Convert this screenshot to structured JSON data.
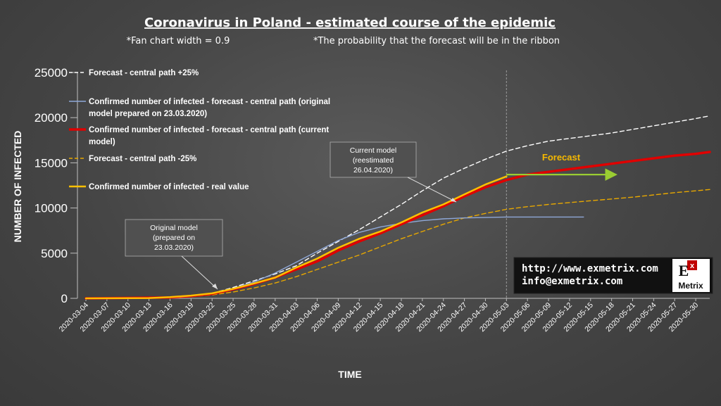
{
  "chart_data": {
    "type": "line",
    "title": "Coronavirus in Poland - estimated course of the epidemic",
    "subtitle_left": "*Fan chart width = 0.9",
    "subtitle_right": "*The probability that the forecast will be in the ribbon",
    "xlabel": "TIME",
    "ylabel": "NUMBER OF INFECTED",
    "x_start": "2020-03-04",
    "x_end": "2020-06-01",
    "ylim": [
      0,
      25000
    ],
    "yticks": [
      0,
      5000,
      10000,
      15000,
      20000,
      25000
    ],
    "xticks": [
      "2020-03-04",
      "2020-03-07",
      "2020-03-10",
      "2020-03-13",
      "2020-03-16",
      "2020-03-19",
      "2020-03-22",
      "2020-03-25",
      "2020-03-28",
      "2020-03-31",
      "2020-04-03",
      "2020-04-06",
      "2020-04-09",
      "2020-04-12",
      "2020-04-15",
      "2020-04-18",
      "2020-04-21",
      "2020-04-24",
      "2020-04-27",
      "2020-04-30",
      "2020-05-03",
      "2020-05-06",
      "2020-05-09",
      "2020-05-12",
      "2020-05-15",
      "2020-05-18",
      "2020-05-21",
      "2020-05-24",
      "2020-05-27",
      "2020-05-30"
    ],
    "vline_date": "2020-05-03",
    "series": [
      {
        "name": "Forecast - central path +25%",
        "color": "#ffffff",
        "style": "dashed",
        "points": [
          [
            "2020-03-04",
            0
          ],
          [
            "2020-03-16",
            100
          ],
          [
            "2020-03-19",
            250
          ],
          [
            "2020-03-22",
            550
          ],
          [
            "2020-03-25",
            1200
          ],
          [
            "2020-03-28",
            1950
          ],
          [
            "2020-03-31",
            2700
          ],
          [
            "2020-04-03",
            3600
          ],
          [
            "2020-04-06",
            5000
          ],
          [
            "2020-04-09",
            6300
          ],
          [
            "2020-04-12",
            7600
          ],
          [
            "2020-04-15",
            9000
          ],
          [
            "2020-04-18",
            10400
          ],
          [
            "2020-04-21",
            11900
          ],
          [
            "2020-04-24",
            13300
          ],
          [
            "2020-04-27",
            14400
          ],
          [
            "2020-04-30",
            15400
          ],
          [
            "2020-05-03",
            16300
          ],
          [
            "2020-05-06",
            16900
          ],
          [
            "2020-05-09",
            17400
          ],
          [
            "2020-05-12",
            17700
          ],
          [
            "2020-05-15",
            18000
          ],
          [
            "2020-05-18",
            18300
          ],
          [
            "2020-05-21",
            18700
          ],
          [
            "2020-05-24",
            19100
          ],
          [
            "2020-05-27",
            19500
          ],
          [
            "2020-05-30",
            19900
          ],
          [
            "2020-06-01",
            20200
          ]
        ]
      },
      {
        "name": "Confirmed number of infected - forecast - central path (original model prepared on 23.03.2020)",
        "color": "#8fa8d8",
        "style": "solid",
        "points": [
          [
            "2020-03-04",
            0
          ],
          [
            "2020-03-16",
            100
          ],
          [
            "2020-03-19",
            250
          ],
          [
            "2020-03-22",
            550
          ],
          [
            "2020-03-25",
            1100
          ],
          [
            "2020-03-28",
            1800
          ],
          [
            "2020-03-31",
            2800
          ],
          [
            "2020-04-03",
            4000
          ],
          [
            "2020-04-06",
            5200
          ],
          [
            "2020-04-09",
            6400
          ],
          [
            "2020-04-12",
            7300
          ],
          [
            "2020-04-15",
            7900
          ],
          [
            "2020-04-18",
            8300
          ],
          [
            "2020-04-21",
            8600
          ],
          [
            "2020-04-24",
            8800
          ],
          [
            "2020-04-27",
            8900
          ],
          [
            "2020-04-30",
            8950
          ],
          [
            "2020-05-03",
            9000
          ],
          [
            "2020-05-06",
            9000
          ],
          [
            "2020-05-09",
            9000
          ],
          [
            "2020-05-12",
            9000
          ],
          [
            "2020-05-14",
            9000
          ]
        ]
      },
      {
        "name": "Confirmed number of infected - forecast - central path (current model)",
        "color": "#e00000",
        "style": "solid",
        "width": 3.5,
        "points": [
          [
            "2020-03-04",
            0
          ],
          [
            "2020-03-16",
            100
          ],
          [
            "2020-03-19",
            250
          ],
          [
            "2020-03-22",
            500
          ],
          [
            "2020-03-25",
            1000
          ],
          [
            "2020-03-28",
            1600
          ],
          [
            "2020-03-31",
            2300
          ],
          [
            "2020-04-03",
            3200
          ],
          [
            "2020-04-06",
            4100
          ],
          [
            "2020-04-09",
            5300
          ],
          [
            "2020-04-12",
            6300
          ],
          [
            "2020-04-15",
            7200
          ],
          [
            "2020-04-18",
            8200
          ],
          [
            "2020-04-21",
            9200
          ],
          [
            "2020-04-24",
            10200
          ],
          [
            "2020-04-27",
            11300
          ],
          [
            "2020-04-30",
            12300
          ],
          [
            "2020-05-03",
            13100
          ],
          [
            "2020-05-06",
            13700
          ],
          [
            "2020-05-09",
            14000
          ],
          [
            "2020-05-12",
            14300
          ],
          [
            "2020-05-15",
            14600
          ],
          [
            "2020-05-18",
            14900
          ],
          [
            "2020-05-21",
            15200
          ],
          [
            "2020-05-24",
            15500
          ],
          [
            "2020-05-27",
            15800
          ],
          [
            "2020-05-30",
            16000
          ],
          [
            "2020-06-01",
            16200
          ]
        ]
      },
      {
        "name": "Forecast - central path -25%",
        "color": "#e8a800",
        "style": "dashed",
        "points": [
          [
            "2020-03-04",
            0
          ],
          [
            "2020-03-16",
            70
          ],
          [
            "2020-03-19",
            180
          ],
          [
            "2020-03-22",
            380
          ],
          [
            "2020-03-25",
            700
          ],
          [
            "2020-03-28",
            1150
          ],
          [
            "2020-03-31",
            1700
          ],
          [
            "2020-04-03",
            2400
          ],
          [
            "2020-04-06",
            3200
          ],
          [
            "2020-04-09",
            4000
          ],
          [
            "2020-04-12",
            4800
          ],
          [
            "2020-04-15",
            5700
          ],
          [
            "2020-04-18",
            6600
          ],
          [
            "2020-04-21",
            7400
          ],
          [
            "2020-04-24",
            8200
          ],
          [
            "2020-04-27",
            8900
          ],
          [
            "2020-04-30",
            9400
          ],
          [
            "2020-05-03",
            9850
          ],
          [
            "2020-05-06",
            10150
          ],
          [
            "2020-05-09",
            10400
          ],
          [
            "2020-05-12",
            10600
          ],
          [
            "2020-05-15",
            10800
          ],
          [
            "2020-05-18",
            11000
          ],
          [
            "2020-05-21",
            11200
          ],
          [
            "2020-05-24",
            11450
          ],
          [
            "2020-05-27",
            11700
          ],
          [
            "2020-05-30",
            11900
          ],
          [
            "2020-06-01",
            12050
          ]
        ]
      },
      {
        "name": "Confirmed number of infected - real value",
        "color": "#ffc000",
        "style": "solid",
        "width": 2.5,
        "points": [
          [
            "2020-03-04",
            0
          ],
          [
            "2020-03-13",
            30
          ],
          [
            "2020-03-16",
            130
          ],
          [
            "2020-03-19",
            300
          ],
          [
            "2020-03-22",
            550
          ],
          [
            "2020-03-25",
            1050
          ],
          [
            "2020-03-28",
            1650
          ],
          [
            "2020-03-31",
            2300
          ],
          [
            "2020-04-03",
            3400
          ],
          [
            "2020-04-06",
            4400
          ],
          [
            "2020-04-09",
            5600
          ],
          [
            "2020-04-12",
            6600
          ],
          [
            "2020-04-15",
            7400
          ],
          [
            "2020-04-18",
            8400
          ],
          [
            "2020-04-21",
            9500
          ],
          [
            "2020-04-24",
            10400
          ],
          [
            "2020-04-27",
            11500
          ],
          [
            "2020-04-30",
            12600
          ],
          [
            "2020-05-03",
            13500
          ]
        ]
      }
    ],
    "annotations": {
      "original_model": [
        "Original model",
        "(prepared on",
        "23.03.2020)"
      ],
      "current_model": [
        "Current model",
        "(reestimated",
        "26.04.2020)"
      ],
      "forecast": "Forecast",
      "forecast_arrow": {
        "from_date": "2020-05-03",
        "to_date": "2020-05-19",
        "value": 13700,
        "color": "#9acd32"
      }
    }
  },
  "branding": {
    "url": "http://www.exmetrix.com",
    "email": "info@exmetrix.com",
    "logo_letter": "E",
    "logo_super": "x",
    "logo_text": "Metrix"
  }
}
